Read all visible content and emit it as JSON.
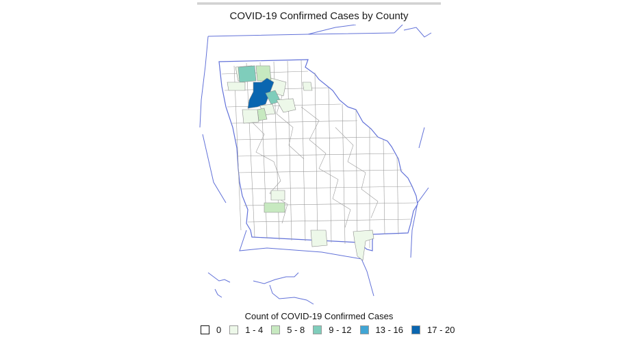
{
  "title": "COVID-19 Confirmed Cases by County",
  "legend": {
    "title": "Count of COVID-19 Confirmed Cases",
    "classes": [
      {
        "label": "0",
        "color": "#ffffff"
      },
      {
        "label": "1 - 4",
        "color": "#edf8e9"
      },
      {
        "label": "5 - 8",
        "color": "#c7e9c0"
      },
      {
        "label": "9 - 12",
        "color": "#7fcdbb"
      },
      {
        "label": "13 - 16",
        "color": "#41a5d4"
      },
      {
        "label": "17 - 20",
        "color": "#0a66b0"
      }
    ]
  },
  "colors": {
    "county_border": "#8c8c8c",
    "state_border": "#6070d8",
    "background": "#ffffff"
  }
}
